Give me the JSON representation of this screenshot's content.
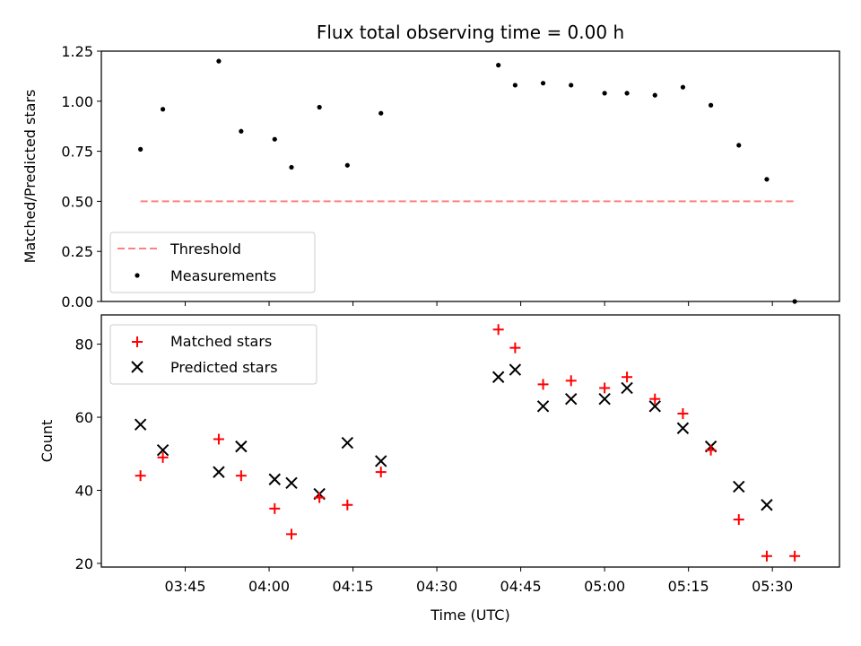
{
  "chart_data": [
    {
      "type": "line",
      "title": "Flux total observing time = 0.00 h",
      "xlabel": "",
      "ylabel": "Matched/Predicted stars",
      "ylim": [
        0,
        1.25
      ],
      "yticks": [
        "0.00",
        "0.25",
        "0.50",
        "0.75",
        "1.00",
        "1.25"
      ],
      "legend_position": "lower-left",
      "threshold": {
        "name": "Threshold",
        "color": "#ff8080",
        "style": "dashed",
        "x": [
          "03:37",
          "05:34"
        ],
        "y": 0.5
      },
      "measurements": {
        "name": "Measurements",
        "color": "#000000",
        "points": [
          {
            "x": "03:37",
            "y": 0.76
          },
          {
            "x": "03:41",
            "y": 0.96
          },
          {
            "x": "03:51",
            "y": 1.2
          },
          {
            "x": "03:55",
            "y": 0.85
          },
          {
            "x": "04:01",
            "y": 0.81
          },
          {
            "x": "04:04",
            "y": 0.67
          },
          {
            "x": "04:09",
            "y": 0.97
          },
          {
            "x": "04:14",
            "y": 0.68
          },
          {
            "x": "04:20",
            "y": 0.94
          },
          {
            "x": "04:41",
            "y": 1.18
          },
          {
            "x": "04:44",
            "y": 1.08
          },
          {
            "x": "04:49",
            "y": 1.09
          },
          {
            "x": "04:54",
            "y": 1.08
          },
          {
            "x": "05:00",
            "y": 1.04
          },
          {
            "x": "05:04",
            "y": 1.04
          },
          {
            "x": "05:09",
            "y": 1.03
          },
          {
            "x": "05:14",
            "y": 1.07
          },
          {
            "x": "05:19",
            "y": 0.98
          },
          {
            "x": "05:24",
            "y": 0.78
          },
          {
            "x": "05:29",
            "y": 0.61
          },
          {
            "x": "05:34",
            "y": 0.0
          }
        ]
      }
    },
    {
      "type": "scatter",
      "xlabel": "Time (UTC)",
      "ylabel": "Count",
      "ylim": [
        19,
        88
      ],
      "yticks": [
        "20",
        "40",
        "60",
        "80"
      ],
      "xticks": [
        "03:45",
        "04:00",
        "04:15",
        "04:30",
        "04:45",
        "05:00",
        "05:15",
        "05:30"
      ],
      "legend_position": "upper-left",
      "series": [
        {
          "name": "Matched stars",
          "color": "#ff0000",
          "marker": "plus",
          "points": [
            {
              "x": "03:37",
              "y": 44
            },
            {
              "x": "03:41",
              "y": 49
            },
            {
              "x": "03:51",
              "y": 54
            },
            {
              "x": "03:55",
              "y": 44
            },
            {
              "x": "04:01",
              "y": 35
            },
            {
              "x": "04:04",
              "y": 28
            },
            {
              "x": "04:09",
              "y": 38
            },
            {
              "x": "04:14",
              "y": 36
            },
            {
              "x": "04:20",
              "y": 45
            },
            {
              "x": "04:41",
              "y": 84
            },
            {
              "x": "04:44",
              "y": 79
            },
            {
              "x": "04:49",
              "y": 69
            },
            {
              "x": "04:54",
              "y": 70
            },
            {
              "x": "05:00",
              "y": 68
            },
            {
              "x": "05:04",
              "y": 71
            },
            {
              "x": "05:09",
              "y": 65
            },
            {
              "x": "05:14",
              "y": 61
            },
            {
              "x": "05:19",
              "y": 51
            },
            {
              "x": "05:24",
              "y": 32
            },
            {
              "x": "05:29",
              "y": 22
            },
            {
              "x": "05:34",
              "y": 22
            }
          ]
        },
        {
          "name": "Predicted stars",
          "color": "#000000",
          "marker": "x",
          "points": [
            {
              "x": "03:37",
              "y": 58
            },
            {
              "x": "03:41",
              "y": 51
            },
            {
              "x": "03:51",
              "y": 45
            },
            {
              "x": "03:55",
              "y": 52
            },
            {
              "x": "04:01",
              "y": 43
            },
            {
              "x": "04:04",
              "y": 42
            },
            {
              "x": "04:09",
              "y": 39
            },
            {
              "x": "04:14",
              "y": 53
            },
            {
              "x": "04:20",
              "y": 48
            },
            {
              "x": "04:41",
              "y": 71
            },
            {
              "x": "04:44",
              "y": 73
            },
            {
              "x": "04:49",
              "y": 63
            },
            {
              "x": "04:54",
              "y": 65
            },
            {
              "x": "05:00",
              "y": 65
            },
            {
              "x": "05:04",
              "y": 68
            },
            {
              "x": "05:09",
              "y": 63
            },
            {
              "x": "05:14",
              "y": 57
            },
            {
              "x": "05:19",
              "y": 52
            },
            {
              "x": "05:24",
              "y": 41
            },
            {
              "x": "05:29",
              "y": 36
            }
          ]
        }
      ]
    }
  ]
}
